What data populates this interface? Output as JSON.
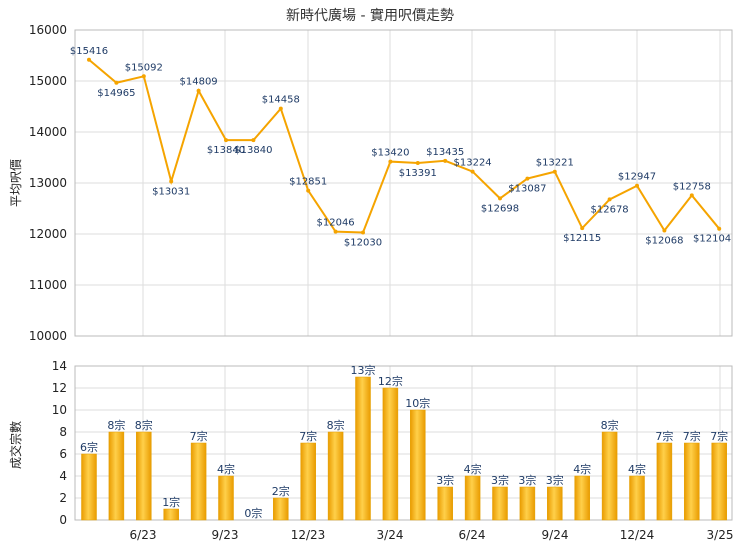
{
  "chart_data": [
    {
      "type": "line",
      "title": "新時代廣場 - 實用呎價走勢",
      "ylabel": "平均呎價",
      "ylim": [
        10000,
        16000
      ],
      "yticks": [
        "10000",
        "11000",
        "12000",
        "13000",
        "14000",
        "15000",
        "16000"
      ],
      "grid": true,
      "color": "#f5a400",
      "series": [
        {
          "values": [
            15416,
            14965,
            15092,
            13031,
            14809,
            13840,
            13840,
            14458,
            12851,
            12046,
            12030,
            13420,
            13391,
            13435,
            13224,
            12698,
            13087,
            13221,
            12115,
            12678,
            12947,
            12068,
            12758,
            12104
          ],
          "labels": [
            "$15416",
            "$14965",
            "$15092",
            "$13031",
            "$14809",
            "$13840",
            "$13840",
            "$14458",
            "$12851",
            "$12046",
            "$12030",
            "$13420",
            "$13391",
            "$13435",
            "$13224",
            "$12698",
            "$13087",
            "$13221",
            "$12115",
            "$12678",
            "$12947",
            "$12068",
            "$12758",
            "$12104"
          ]
        }
      ]
    },
    {
      "type": "bar",
      "ylabel": "成交宗數",
      "ylim": [
        0,
        14
      ],
      "yticks": [
        "0",
        "2",
        "4",
        "6",
        "8",
        "10",
        "12",
        "14"
      ],
      "xticks": [
        "6/23",
        "9/23",
        "12/23",
        "3/24",
        "6/24",
        "9/24",
        "12/24",
        "3/25"
      ],
      "grid": true,
      "color": "#f5b41c",
      "values": [
        6,
        8,
        8,
        1,
        7,
        4,
        0,
        2,
        7,
        8,
        13,
        12,
        10,
        3,
        4,
        3,
        3,
        3,
        4,
        8,
        4,
        7,
        7,
        7
      ],
      "labels": [
        "6宗",
        "8宗",
        "8宗",
        "1宗",
        "7宗",
        "4宗",
        "0宗",
        "2宗",
        "7宗",
        "8宗",
        "13宗",
        "12宗",
        "10宗",
        "3宗",
        "4宗",
        "3宗",
        "3宗",
        "3宗",
        "4宗",
        "8宗",
        "4宗",
        "7宗",
        "7宗",
        "7宗"
      ]
    }
  ]
}
